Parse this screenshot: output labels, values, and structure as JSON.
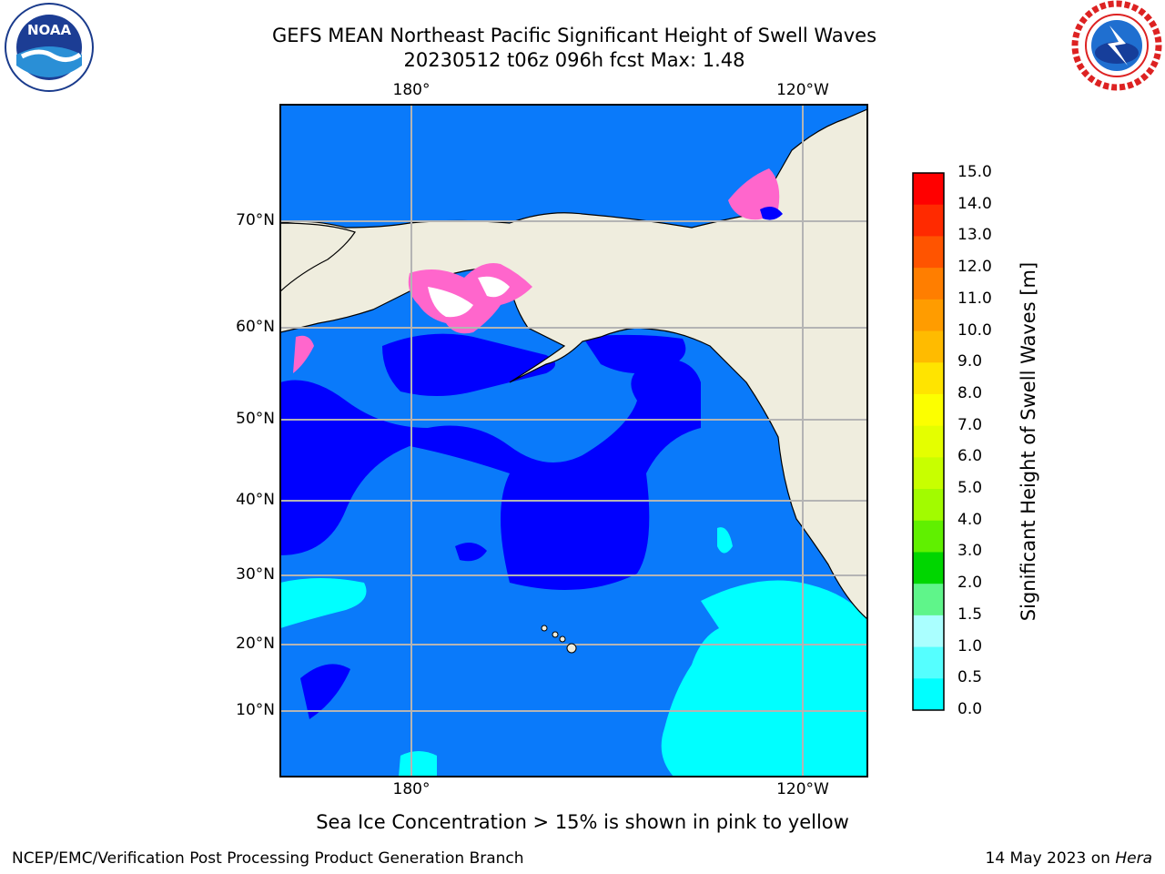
{
  "header": {
    "title_line1": "GEFS MEAN Northeast Pacific Significant Height of Swell Waves",
    "title_line2": "20230512 t06z 096h fcst   Max: 1.48"
  },
  "map": {
    "lon_labels": [
      "180°",
      "120°W"
    ],
    "lat_labels": [
      "70°N",
      "60°N",
      "50°N",
      "40°N",
      "30°N",
      "20°N",
      "10°N"
    ],
    "land_color": "#efedde",
    "ocean_colors": [
      "#0000ff",
      "#0a7afa",
      "#00ffff"
    ]
  },
  "colorbar": {
    "label": "Significant Height of Swell Waves [m]",
    "ticks": [
      "15.0",
      "14.0",
      "13.0",
      "12.0",
      "11.0",
      "10.0",
      "9.0",
      "8.0",
      "7.0",
      "6.0",
      "5.0",
      "4.0",
      "3.0",
      "2.0",
      "1.5",
      "1.0",
      "0.5",
      "0.0"
    ],
    "colors_top_to_bottom": [
      "#ff0000",
      "#ff2a00",
      "#ff5400",
      "#ff7e00",
      "#ff9c00",
      "#ffbb00",
      "#ffe400",
      "#fcff00",
      "#e4ff00",
      "#c8ff00",
      "#a2fb00",
      "#60f000",
      "#00d600",
      "#5ff58a",
      "#aaffff",
      "#55ffff",
      "#00ffff",
      "#0a7afa",
      "#0000ff"
    ]
  },
  "note": "Sea Ice Concentration > 15% is shown in pink to yellow",
  "footer": {
    "left": "NCEP/EMC/Verification Post Processing Product Generation Branch",
    "right_date": "14 May 2023 on ",
    "right_host": "Hera"
  },
  "logos": {
    "left": "NOAA",
    "right": "NATIONAL WEATHER SERVICE"
  }
}
